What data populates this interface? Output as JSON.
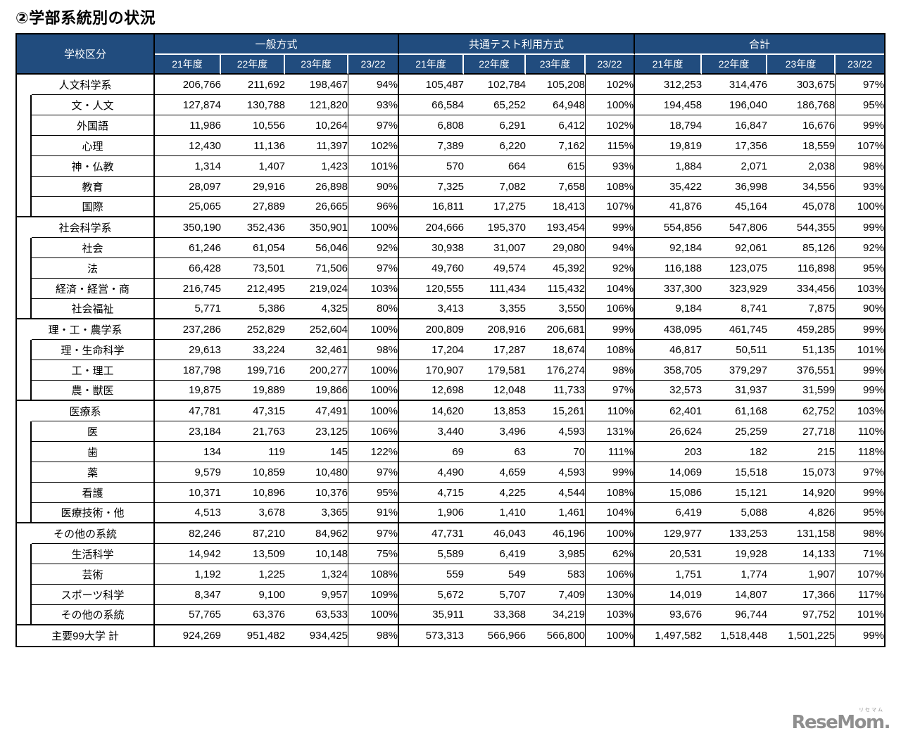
{
  "title": "②学部系統別の状況",
  "colors": {
    "header_bg": "#214C7E",
    "header_text": "#FFFFFF",
    "border": "#000000"
  },
  "watermark": {
    "name": "ReseMom.",
    "kana": "リセマム"
  },
  "table": {
    "corner_header": "学校区分",
    "groups": [
      {
        "label": "一般方式",
        "cols": [
          "21年度",
          "22年度",
          "23年度",
          "23/22"
        ]
      },
      {
        "label": "共通テスト利用方式",
        "cols": [
          "21年度",
          "22年度",
          "23年度",
          "23/22"
        ]
      },
      {
        "label": "合計",
        "cols": [
          "21年度",
          "22年度",
          "23年度",
          "23/22"
        ]
      }
    ],
    "rows": [
      {
        "label": "人文科学系",
        "type": "parent",
        "values": [
          "206,766",
          "211,692",
          "198,467",
          "94%",
          "105,487",
          "102,784",
          "105,208",
          "102%",
          "312,253",
          "314,476",
          "303,675",
          "97%"
        ]
      },
      {
        "label": "文・人文",
        "type": "sub",
        "values": [
          "127,874",
          "130,788",
          "121,820",
          "93%",
          "66,584",
          "65,252",
          "64,948",
          "100%",
          "194,458",
          "196,040",
          "186,768",
          "95%"
        ]
      },
      {
        "label": "外国語",
        "type": "sub",
        "values": [
          "11,986",
          "10,556",
          "10,264",
          "97%",
          "6,808",
          "6,291",
          "6,412",
          "102%",
          "18,794",
          "16,847",
          "16,676",
          "99%"
        ]
      },
      {
        "label": "心理",
        "type": "sub",
        "values": [
          "12,430",
          "11,136",
          "11,397",
          "102%",
          "7,389",
          "6,220",
          "7,162",
          "115%",
          "19,819",
          "17,356",
          "18,559",
          "107%"
        ]
      },
      {
        "label": "神・仏教",
        "type": "sub",
        "values": [
          "1,314",
          "1,407",
          "1,423",
          "101%",
          "570",
          "664",
          "615",
          "93%",
          "1,884",
          "2,071",
          "2,038",
          "98%"
        ]
      },
      {
        "label": "教育",
        "type": "sub",
        "values": [
          "28,097",
          "29,916",
          "26,898",
          "90%",
          "7,325",
          "7,082",
          "7,658",
          "108%",
          "35,422",
          "36,998",
          "34,556",
          "93%"
        ]
      },
      {
        "label": "国際",
        "type": "sub",
        "values": [
          "25,065",
          "27,889",
          "26,665",
          "96%",
          "16,811",
          "17,275",
          "18,413",
          "107%",
          "41,876",
          "45,164",
          "45,078",
          "100%"
        ]
      },
      {
        "label": "社会科学系",
        "type": "parent",
        "values": [
          "350,190",
          "352,436",
          "350,901",
          "100%",
          "204,666",
          "195,370",
          "193,454",
          "99%",
          "554,856",
          "547,806",
          "544,355",
          "99%"
        ]
      },
      {
        "label": "社会",
        "type": "sub",
        "values": [
          "61,246",
          "61,054",
          "56,046",
          "92%",
          "30,938",
          "31,007",
          "29,080",
          "94%",
          "92,184",
          "92,061",
          "85,126",
          "92%"
        ]
      },
      {
        "label": "法",
        "type": "sub",
        "values": [
          "66,428",
          "73,501",
          "71,506",
          "97%",
          "49,760",
          "49,574",
          "45,392",
          "92%",
          "116,188",
          "123,075",
          "116,898",
          "95%"
        ]
      },
      {
        "label": "経済・経営・商",
        "type": "sub",
        "values": [
          "216,745",
          "212,495",
          "219,024",
          "103%",
          "120,555",
          "111,434",
          "115,432",
          "104%",
          "337,300",
          "323,929",
          "334,456",
          "103%"
        ]
      },
      {
        "label": "社会福祉",
        "type": "sub",
        "values": [
          "5,771",
          "5,386",
          "4,325",
          "80%",
          "3,413",
          "3,355",
          "3,550",
          "106%",
          "9,184",
          "8,741",
          "7,875",
          "90%"
        ]
      },
      {
        "label": "理・工・農学系",
        "type": "parent",
        "values": [
          "237,286",
          "252,829",
          "252,604",
          "100%",
          "200,809",
          "208,916",
          "206,681",
          "99%",
          "438,095",
          "461,745",
          "459,285",
          "99%"
        ]
      },
      {
        "label": "理・生命科学",
        "type": "sub",
        "values": [
          "29,613",
          "33,224",
          "32,461",
          "98%",
          "17,204",
          "17,287",
          "18,674",
          "108%",
          "46,817",
          "50,511",
          "51,135",
          "101%"
        ]
      },
      {
        "label": "工・理工",
        "type": "sub",
        "values": [
          "187,798",
          "199,716",
          "200,277",
          "100%",
          "170,907",
          "179,581",
          "176,274",
          "98%",
          "358,705",
          "379,297",
          "376,551",
          "99%"
        ]
      },
      {
        "label": "農・獣医",
        "type": "sub",
        "values": [
          "19,875",
          "19,889",
          "19,866",
          "100%",
          "12,698",
          "12,048",
          "11,733",
          "97%",
          "32,573",
          "31,937",
          "31,599",
          "99%"
        ]
      },
      {
        "label": "医療系",
        "type": "parent",
        "values": [
          "47,781",
          "47,315",
          "47,491",
          "100%",
          "14,620",
          "13,853",
          "15,261",
          "110%",
          "62,401",
          "61,168",
          "62,752",
          "103%"
        ]
      },
      {
        "label": "医",
        "type": "sub",
        "values": [
          "23,184",
          "21,763",
          "23,125",
          "106%",
          "3,440",
          "3,496",
          "4,593",
          "131%",
          "26,624",
          "25,259",
          "27,718",
          "110%"
        ]
      },
      {
        "label": "歯",
        "type": "sub",
        "values": [
          "134",
          "119",
          "145",
          "122%",
          "69",
          "63",
          "70",
          "111%",
          "203",
          "182",
          "215",
          "118%"
        ]
      },
      {
        "label": "薬",
        "type": "sub",
        "values": [
          "9,579",
          "10,859",
          "10,480",
          "97%",
          "4,490",
          "4,659",
          "4,593",
          "99%",
          "14,069",
          "15,518",
          "15,073",
          "97%"
        ]
      },
      {
        "label": "看護",
        "type": "sub",
        "values": [
          "10,371",
          "10,896",
          "10,376",
          "95%",
          "4,715",
          "4,225",
          "4,544",
          "108%",
          "15,086",
          "15,121",
          "14,920",
          "99%"
        ]
      },
      {
        "label": "医療技術・他",
        "type": "sub",
        "values": [
          "4,513",
          "3,678",
          "3,365",
          "91%",
          "1,906",
          "1,410",
          "1,461",
          "104%",
          "6,419",
          "5,088",
          "4,826",
          "95%"
        ]
      },
      {
        "label": "その他の系統",
        "type": "parent",
        "values": [
          "82,246",
          "87,210",
          "84,962",
          "97%",
          "47,731",
          "46,043",
          "46,196",
          "100%",
          "129,977",
          "133,253",
          "131,158",
          "98%"
        ]
      },
      {
        "label": "生活科学",
        "type": "sub",
        "values": [
          "14,942",
          "13,509",
          "10,148",
          "75%",
          "5,589",
          "6,419",
          "3,985",
          "62%",
          "20,531",
          "19,928",
          "14,133",
          "71%"
        ]
      },
      {
        "label": "芸術",
        "type": "sub",
        "values": [
          "1,192",
          "1,225",
          "1,324",
          "108%",
          "559",
          "549",
          "583",
          "106%",
          "1,751",
          "1,774",
          "1,907",
          "107%"
        ]
      },
      {
        "label": "スポーツ科学",
        "type": "sub",
        "values": [
          "8,347",
          "9,100",
          "9,957",
          "109%",
          "5,672",
          "5,707",
          "7,409",
          "130%",
          "14,019",
          "14,807",
          "17,366",
          "117%"
        ]
      },
      {
        "label": "その他の系統",
        "type": "sub",
        "values": [
          "57,765",
          "63,376",
          "63,533",
          "100%",
          "35,911",
          "33,368",
          "34,219",
          "103%",
          "93,676",
          "96,744",
          "97,752",
          "101%"
        ]
      },
      {
        "label": "主要99大学 計",
        "type": "total",
        "values": [
          "924,269",
          "951,482",
          "934,425",
          "98%",
          "573,313",
          "566,966",
          "566,800",
          "100%",
          "1,497,582",
          "1,518,448",
          "1,501,225",
          "99%"
        ]
      }
    ]
  }
}
